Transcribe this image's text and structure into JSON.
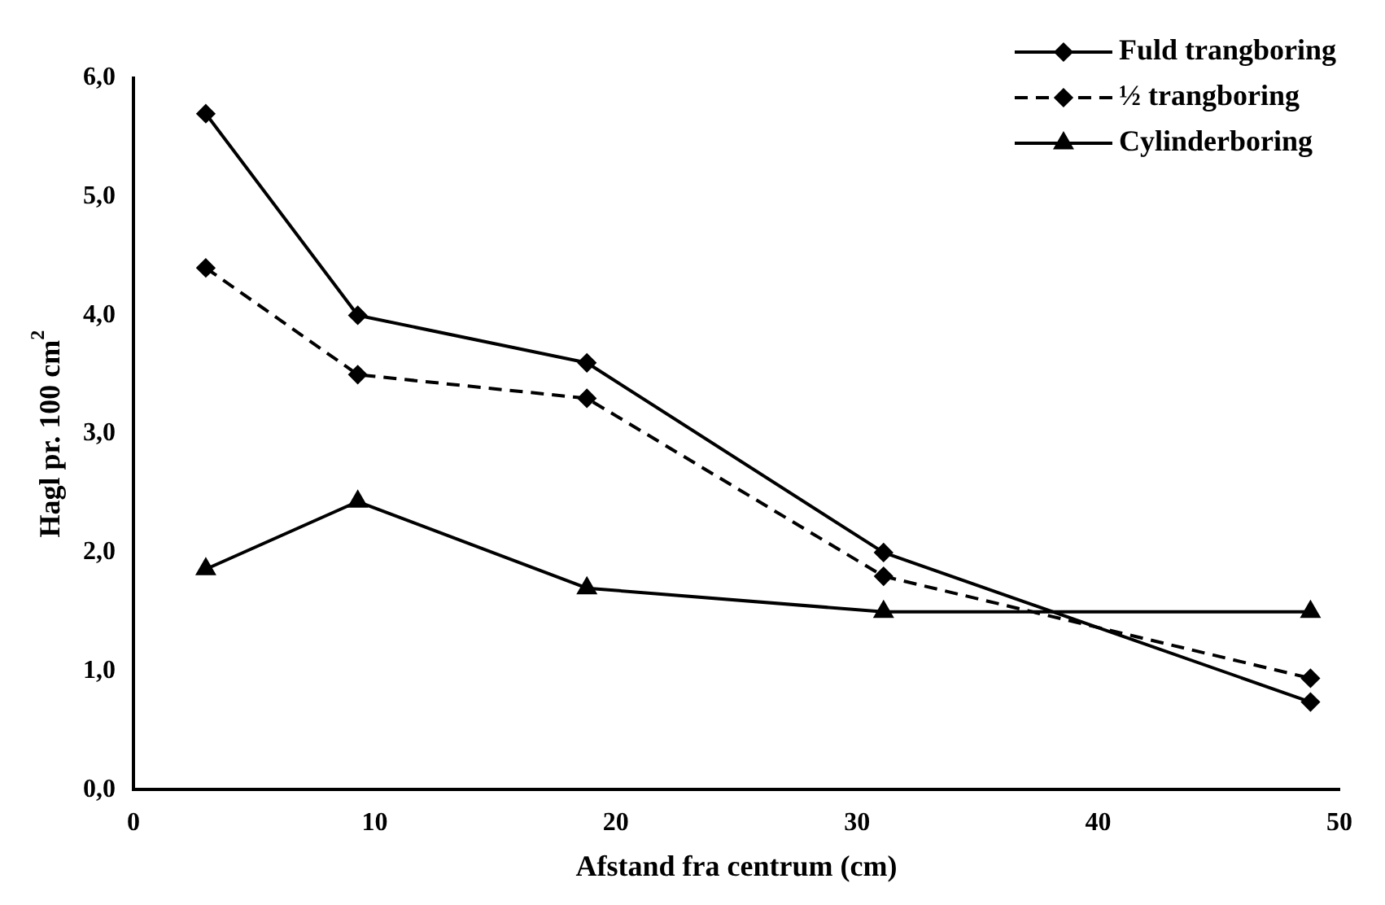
{
  "chart_data": {
    "type": "line",
    "xlabel": "Afstand fra centrum (cm)",
    "ylabel": "Hagl pr. 100 cm$^{2}$",
    "x": [
      3,
      9.3,
      18.8,
      31.1,
      48.8
    ],
    "series": [
      {
        "name": "Fuld trangboring",
        "color": "#000000",
        "marker": "diamond",
        "line_style": "solid",
        "values": [
          5.7,
          4.0,
          3.6,
          2.0,
          0.74
        ]
      },
      {
        "name": "½ trangboring",
        "color": "#000000",
        "marker": "diamond",
        "line_style": "dashed",
        "values": [
          4.4,
          3.5,
          3.3,
          1.8,
          0.94
        ]
      },
      {
        "name": "Cylinderboring",
        "color": "#000000",
        "marker": "triangle",
        "line_style": "solid",
        "values": [
          1.86,
          2.43,
          1.7,
          1.5,
          1.5
        ]
      }
    ],
    "xlim": [
      0,
      50
    ],
    "xticks": [
      0,
      10,
      20,
      30,
      40,
      50
    ],
    "ylim": [
      0,
      6
    ],
    "yticks": [
      {
        "value": 0,
        "label": "0,0"
      },
      {
        "value": 1,
        "label": "1,0"
      },
      {
        "value": 2,
        "label": "2,0"
      },
      {
        "value": 3,
        "label": "3,0"
      },
      {
        "value": 4,
        "label": "4,0"
      },
      {
        "value": 5,
        "label": "5,0"
      },
      {
        "value": 6,
        "label": "6,0"
      }
    ],
    "grid": false,
    "legend": "top right"
  }
}
